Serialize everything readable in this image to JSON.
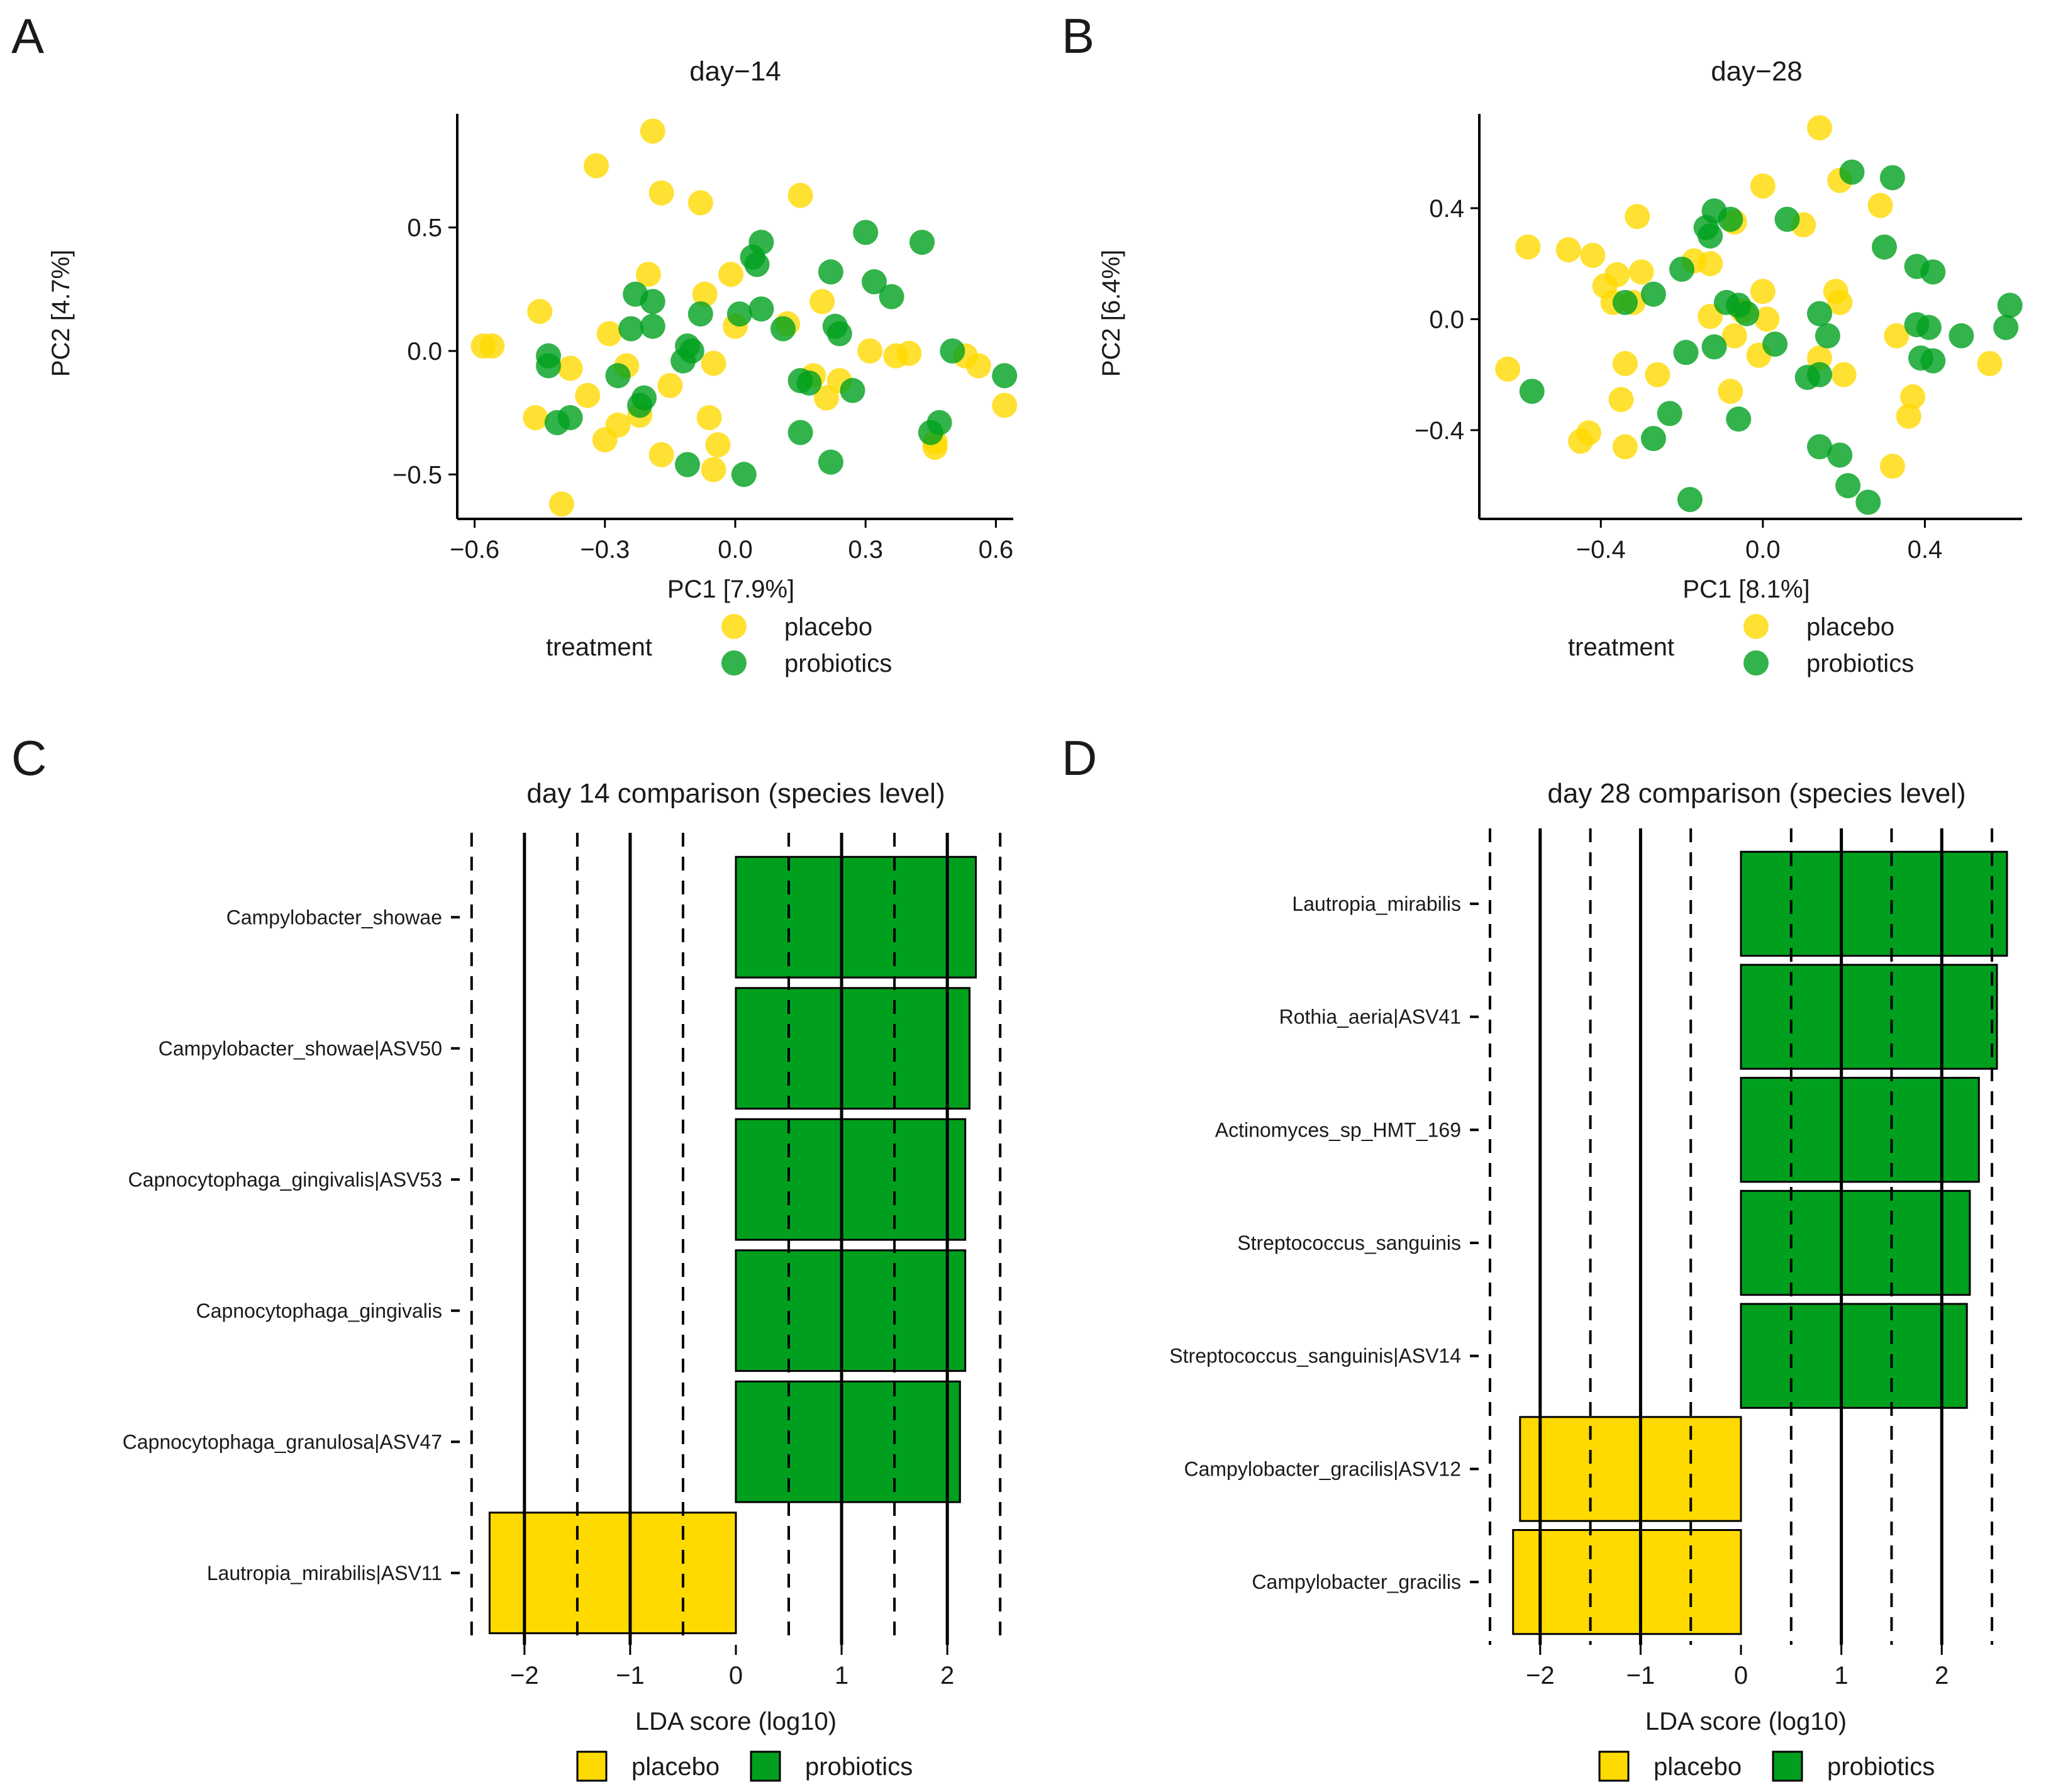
{
  "colors": {
    "placebo": "#FFDA00",
    "probiotics": "#00A01E",
    "axis": "#000000",
    "bar_outline": "#000000"
  },
  "chart_data": [
    {
      "panel": "A",
      "type": "scatter",
      "title": "day−14",
      "xlabel": "PC1 [7.9%]",
      "ylabel": "PC2 [4.7%]",
      "xlim": [
        -0.64,
        0.64
      ],
      "ylim": [
        -0.68,
        0.96
      ],
      "xticks": [
        -0.6,
        -0.3,
        0.0,
        0.3,
        0.6
      ],
      "xtick_labels": [
        "−0.6",
        "−0.3",
        "0.0",
        "0.3",
        "0.6"
      ],
      "yticks": [
        -0.5,
        0.0,
        0.5
      ],
      "ytick_labels": [
        "−0.5",
        "0.0",
        "0.5"
      ],
      "legend": {
        "title": "treatment",
        "entries": [
          "placebo",
          "probiotics"
        ],
        "position": "bottom"
      },
      "series": [
        {
          "name": "placebo",
          "color": "#FFDA00",
          "points": [
            [
              -0.19,
              0.89
            ],
            [
              -0.32,
              0.75
            ],
            [
              -0.17,
              0.64
            ],
            [
              -0.08,
              0.6
            ],
            [
              0.15,
              0.63
            ],
            [
              -0.45,
              0.16
            ],
            [
              -0.58,
              0.02
            ],
            [
              -0.56,
              0.02
            ],
            [
              -0.38,
              -0.07
            ],
            [
              -0.2,
              0.31
            ],
            [
              -0.29,
              0.07
            ],
            [
              -0.01,
              0.31
            ],
            [
              -0.07,
              0.23
            ],
            [
              0.12,
              0.11
            ],
            [
              0.2,
              0.2
            ],
            [
              -0.05,
              -0.05
            ],
            [
              -0.15,
              -0.14
            ],
            [
              -0.25,
              -0.06
            ],
            [
              -0.34,
              -0.18
            ],
            [
              -0.46,
              -0.27
            ],
            [
              -0.3,
              -0.36
            ],
            [
              -0.27,
              -0.3
            ],
            [
              -0.22,
              -0.26
            ],
            [
              -0.06,
              -0.27
            ],
            [
              -0.04,
              -0.38
            ],
            [
              -0.17,
              -0.42
            ],
            [
              -0.05,
              -0.48
            ],
            [
              0.18,
              -0.1
            ],
            [
              0.21,
              -0.19
            ],
            [
              0.24,
              -0.12
            ],
            [
              0.31,
              0.0
            ],
            [
              0.37,
              -0.02
            ],
            [
              0.4,
              -0.01
            ],
            [
              0.53,
              -0.02
            ],
            [
              0.56,
              -0.06
            ],
            [
              0.62,
              -0.22
            ],
            [
              0.46,
              -0.37
            ],
            [
              0.46,
              -0.39
            ],
            [
              -0.4,
              -0.62
            ],
            [
              0.0,
              0.1
            ]
          ]
        },
        {
          "name": "probiotics",
          "color": "#00A01E",
          "points": [
            [
              0.06,
              0.44
            ],
            [
              0.04,
              0.38
            ],
            [
              0.3,
              0.48
            ],
            [
              0.43,
              0.44
            ],
            [
              0.22,
              0.32
            ],
            [
              0.32,
              0.28
            ],
            [
              0.36,
              0.22
            ],
            [
              0.05,
              0.35
            ],
            [
              -0.23,
              0.23
            ],
            [
              -0.19,
              0.2
            ],
            [
              -0.24,
              0.09
            ],
            [
              -0.19,
              0.1
            ],
            [
              -0.1,
              0.0
            ],
            [
              -0.08,
              0.15
            ],
            [
              0.01,
              0.15
            ],
            [
              0.06,
              0.17
            ],
            [
              0.11,
              0.09
            ],
            [
              0.23,
              0.1
            ],
            [
              0.24,
              0.07
            ],
            [
              -0.43,
              -0.02
            ],
            [
              -0.43,
              -0.06
            ],
            [
              -0.27,
              -0.1
            ],
            [
              -0.21,
              -0.19
            ],
            [
              -0.22,
              -0.22
            ],
            [
              -0.11,
              0.02
            ],
            [
              -0.12,
              -0.04
            ],
            [
              -0.38,
              -0.27
            ],
            [
              -0.41,
              -0.29
            ],
            [
              0.15,
              -0.12
            ],
            [
              0.17,
              -0.13
            ],
            [
              0.27,
              -0.16
            ],
            [
              0.15,
              -0.33
            ],
            [
              0.45,
              -0.33
            ],
            [
              0.47,
              -0.29
            ],
            [
              -0.11,
              -0.46
            ],
            [
              0.02,
              -0.5
            ],
            [
              0.22,
              -0.45
            ],
            [
              0.5,
              0.0
            ],
            [
              0.62,
              -0.1
            ]
          ]
        }
      ]
    },
    {
      "panel": "B",
      "type": "scatter",
      "title": "day−28",
      "xlabel": "PC1 [8.1%]",
      "ylabel": "PC2 [6.4%]",
      "xlim": [
        -0.7,
        0.64
      ],
      "ylim": [
        -0.72,
        0.74
      ],
      "xticks": [
        -0.4,
        0.0,
        0.4
      ],
      "xtick_labels": [
        "−0.4",
        "0.0",
        "0.4"
      ],
      "yticks": [
        -0.4,
        0.0,
        0.4
      ],
      "ytick_labels": [
        "−0.4",
        "0.0",
        "0.4"
      ],
      "legend": {
        "title": "treatment",
        "entries": [
          "placebo",
          "probiotics"
        ],
        "position": "bottom"
      },
      "series": [
        {
          "name": "placebo",
          "color": "#FFDA00",
          "points": [
            [
              0.14,
              0.69
            ],
            [
              0.0,
              0.48
            ],
            [
              0.19,
              0.5
            ],
            [
              0.29,
              0.41
            ],
            [
              -0.31,
              0.37
            ],
            [
              -0.07,
              0.35
            ],
            [
              0.1,
              0.34
            ],
            [
              -0.58,
              0.26
            ],
            [
              -0.48,
              0.25
            ],
            [
              -0.42,
              0.23
            ],
            [
              -0.17,
              0.21
            ],
            [
              -0.13,
              0.2
            ],
            [
              -0.36,
              0.16
            ],
            [
              -0.3,
              0.17
            ],
            [
              -0.39,
              0.12
            ],
            [
              -0.37,
              0.06
            ],
            [
              -0.32,
              0.06
            ],
            [
              0.0,
              0.1
            ],
            [
              0.18,
              0.1
            ],
            [
              0.19,
              0.06
            ],
            [
              -0.13,
              0.01
            ],
            [
              -0.05,
              0.03
            ],
            [
              0.01,
              0.0
            ],
            [
              -0.07,
              -0.06
            ],
            [
              0.33,
              -0.06
            ],
            [
              -0.01,
              -0.13
            ],
            [
              0.14,
              -0.14
            ],
            [
              -0.63,
              -0.18
            ],
            [
              -0.34,
              -0.16
            ],
            [
              -0.26,
              -0.2
            ],
            [
              0.2,
              -0.2
            ],
            [
              -0.08,
              -0.26
            ],
            [
              -0.35,
              -0.29
            ],
            [
              0.37,
              -0.28
            ],
            [
              0.36,
              -0.35
            ],
            [
              -0.43,
              -0.41
            ],
            [
              -0.45,
              -0.44
            ],
            [
              -0.34,
              -0.46
            ],
            [
              0.32,
              -0.53
            ],
            [
              0.56,
              -0.16
            ]
          ]
        },
        {
          "name": "probiotics",
          "color": "#00A01E",
          "points": [
            [
              0.22,
              0.53
            ],
            [
              0.32,
              0.51
            ],
            [
              -0.12,
              0.39
            ],
            [
              0.06,
              0.36
            ],
            [
              -0.08,
              0.36
            ],
            [
              -0.14,
              0.33
            ],
            [
              -0.13,
              0.3
            ],
            [
              0.3,
              0.26
            ],
            [
              -0.2,
              0.18
            ],
            [
              0.38,
              0.19
            ],
            [
              0.42,
              0.17
            ],
            [
              -0.27,
              0.09
            ],
            [
              -0.34,
              0.06
            ],
            [
              -0.06,
              0.05
            ],
            [
              -0.09,
              0.06
            ],
            [
              -0.04,
              0.02
            ],
            [
              0.38,
              -0.02
            ],
            [
              0.41,
              -0.03
            ],
            [
              0.49,
              -0.06
            ],
            [
              0.61,
              0.05
            ],
            [
              0.6,
              -0.03
            ],
            [
              0.03,
              -0.09
            ],
            [
              -0.12,
              -0.1
            ],
            [
              -0.19,
              -0.12
            ],
            [
              0.16,
              -0.06
            ],
            [
              0.39,
              -0.14
            ],
            [
              0.42,
              -0.15
            ],
            [
              0.11,
              -0.21
            ],
            [
              0.14,
              -0.2
            ],
            [
              -0.57,
              -0.26
            ],
            [
              -0.23,
              -0.34
            ],
            [
              -0.06,
              -0.36
            ],
            [
              -0.27,
              -0.43
            ],
            [
              0.14,
              -0.46
            ],
            [
              0.19,
              -0.49
            ],
            [
              0.21,
              -0.6
            ],
            [
              0.26,
              -0.66
            ],
            [
              -0.18,
              -0.65
            ],
            [
              0.14,
              0.02
            ]
          ]
        }
      ]
    },
    {
      "panel": "C",
      "type": "bar",
      "orientation": "horizontal",
      "title": "day 14 comparison (species level)",
      "xlabel": "LDA score (log10)",
      "xlim": [
        -2.6,
        2.6
      ],
      "xticks": [
        -2,
        -1,
        0,
        1,
        2
      ],
      "xtick_labels": [
        "−2",
        "−1",
        "0",
        "1",
        "2"
      ],
      "solid_gridlines": [
        -2,
        -1,
        1,
        2
      ],
      "dashed_gridlines": [
        -2.5,
        -1.5,
        -0.5,
        0.5,
        1.5,
        2.5
      ],
      "legend": {
        "entries": [
          "placebo",
          "probiotics"
        ],
        "position": "bottom"
      },
      "categories": [
        "Campylobacter_showae",
        "Campylobacter_showae|ASV50",
        "Capnocytophaga_gingivalis|ASV53",
        "Capnocytophaga_gingivalis",
        "Capnocytophaga_granulosa|ASV47",
        "Lautropia_mirabilis|ASV11"
      ],
      "values": [
        2.27,
        2.21,
        2.17,
        2.17,
        2.12,
        -2.33
      ],
      "groups": [
        "probiotics",
        "probiotics",
        "probiotics",
        "probiotics",
        "probiotics",
        "placebo"
      ]
    },
    {
      "panel": "D",
      "type": "bar",
      "orientation": "horizontal",
      "title": "day 28 comparison (species level)",
      "xlabel": "LDA score (log10)",
      "xlim": [
        -2.6,
        2.7
      ],
      "xticks": [
        -2,
        -1,
        0,
        1,
        2
      ],
      "xtick_labels": [
        "−2",
        "−1",
        "0",
        "1",
        "2"
      ],
      "solid_gridlines": [
        -2,
        -1,
        1,
        2
      ],
      "dashed_gridlines": [
        -2.5,
        -1.5,
        -0.5,
        0.5,
        1.5,
        2.5
      ],
      "legend": {
        "entries": [
          "placebo",
          "probiotics"
        ],
        "position": "bottom"
      },
      "categories": [
        "Lautropia_mirabilis",
        "Rothia_aeria|ASV41",
        "Actinomyces_sp_HMT_169",
        "Streptococcus_sanguinis",
        "Streptococcus_sanguinis|ASV14",
        "Campylobacter_gracilis|ASV12",
        "Campylobacter_gracilis"
      ],
      "values": [
        2.65,
        2.55,
        2.37,
        2.28,
        2.25,
        -2.2,
        -2.27
      ],
      "groups": [
        "probiotics",
        "probiotics",
        "probiotics",
        "probiotics",
        "probiotics",
        "placebo",
        "placebo"
      ]
    }
  ]
}
